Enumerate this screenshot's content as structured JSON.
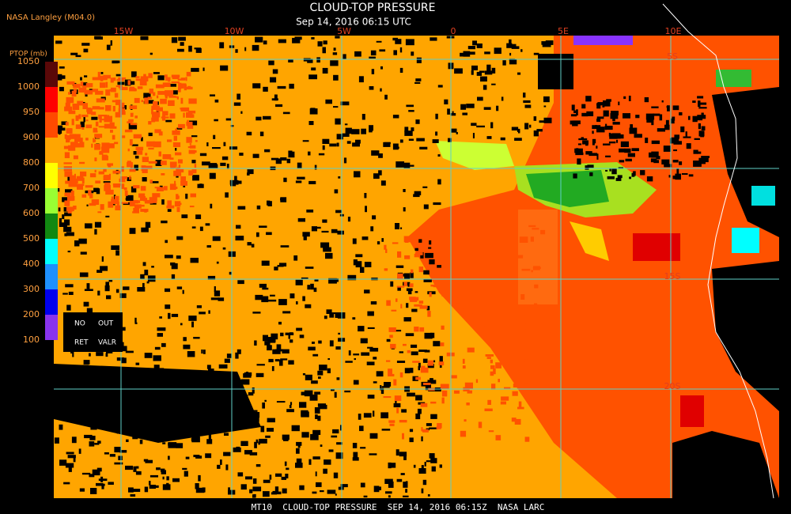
{
  "header": {
    "source": "NASA Langley (M04.0)",
    "title": "CLOUD-TOP PRESSURE",
    "datetime": "Sep 14, 2016 06:15 UTC"
  },
  "legend": {
    "title": "PTOP (mb)",
    "ticks": [
      1050,
      1000,
      950,
      900,
      800,
      700,
      600,
      500,
      400,
      300,
      200,
      100
    ],
    "colors": [
      "#5a0808",
      "#ff0000",
      "#ff4a00",
      "#ffa500",
      "#ffff00",
      "#99ff33",
      "#118811",
      "#00ffff",
      "#1e90ff",
      "#0000ee",
      "#8833ee"
    ],
    "notes": [
      "NO",
      "OUT",
      "RET",
      "VALR"
    ]
  },
  "map": {
    "longitudes": [
      "15W",
      "10W",
      "5W",
      "0",
      "5E",
      "10E"
    ],
    "latitudes": [
      "5S",
      "15S",
      "20S"
    ]
  },
  "footer": "MT10  CLOUD-TOP PRESSURE  SEP 14, 2016 06:15Z  NASA LARC"
}
